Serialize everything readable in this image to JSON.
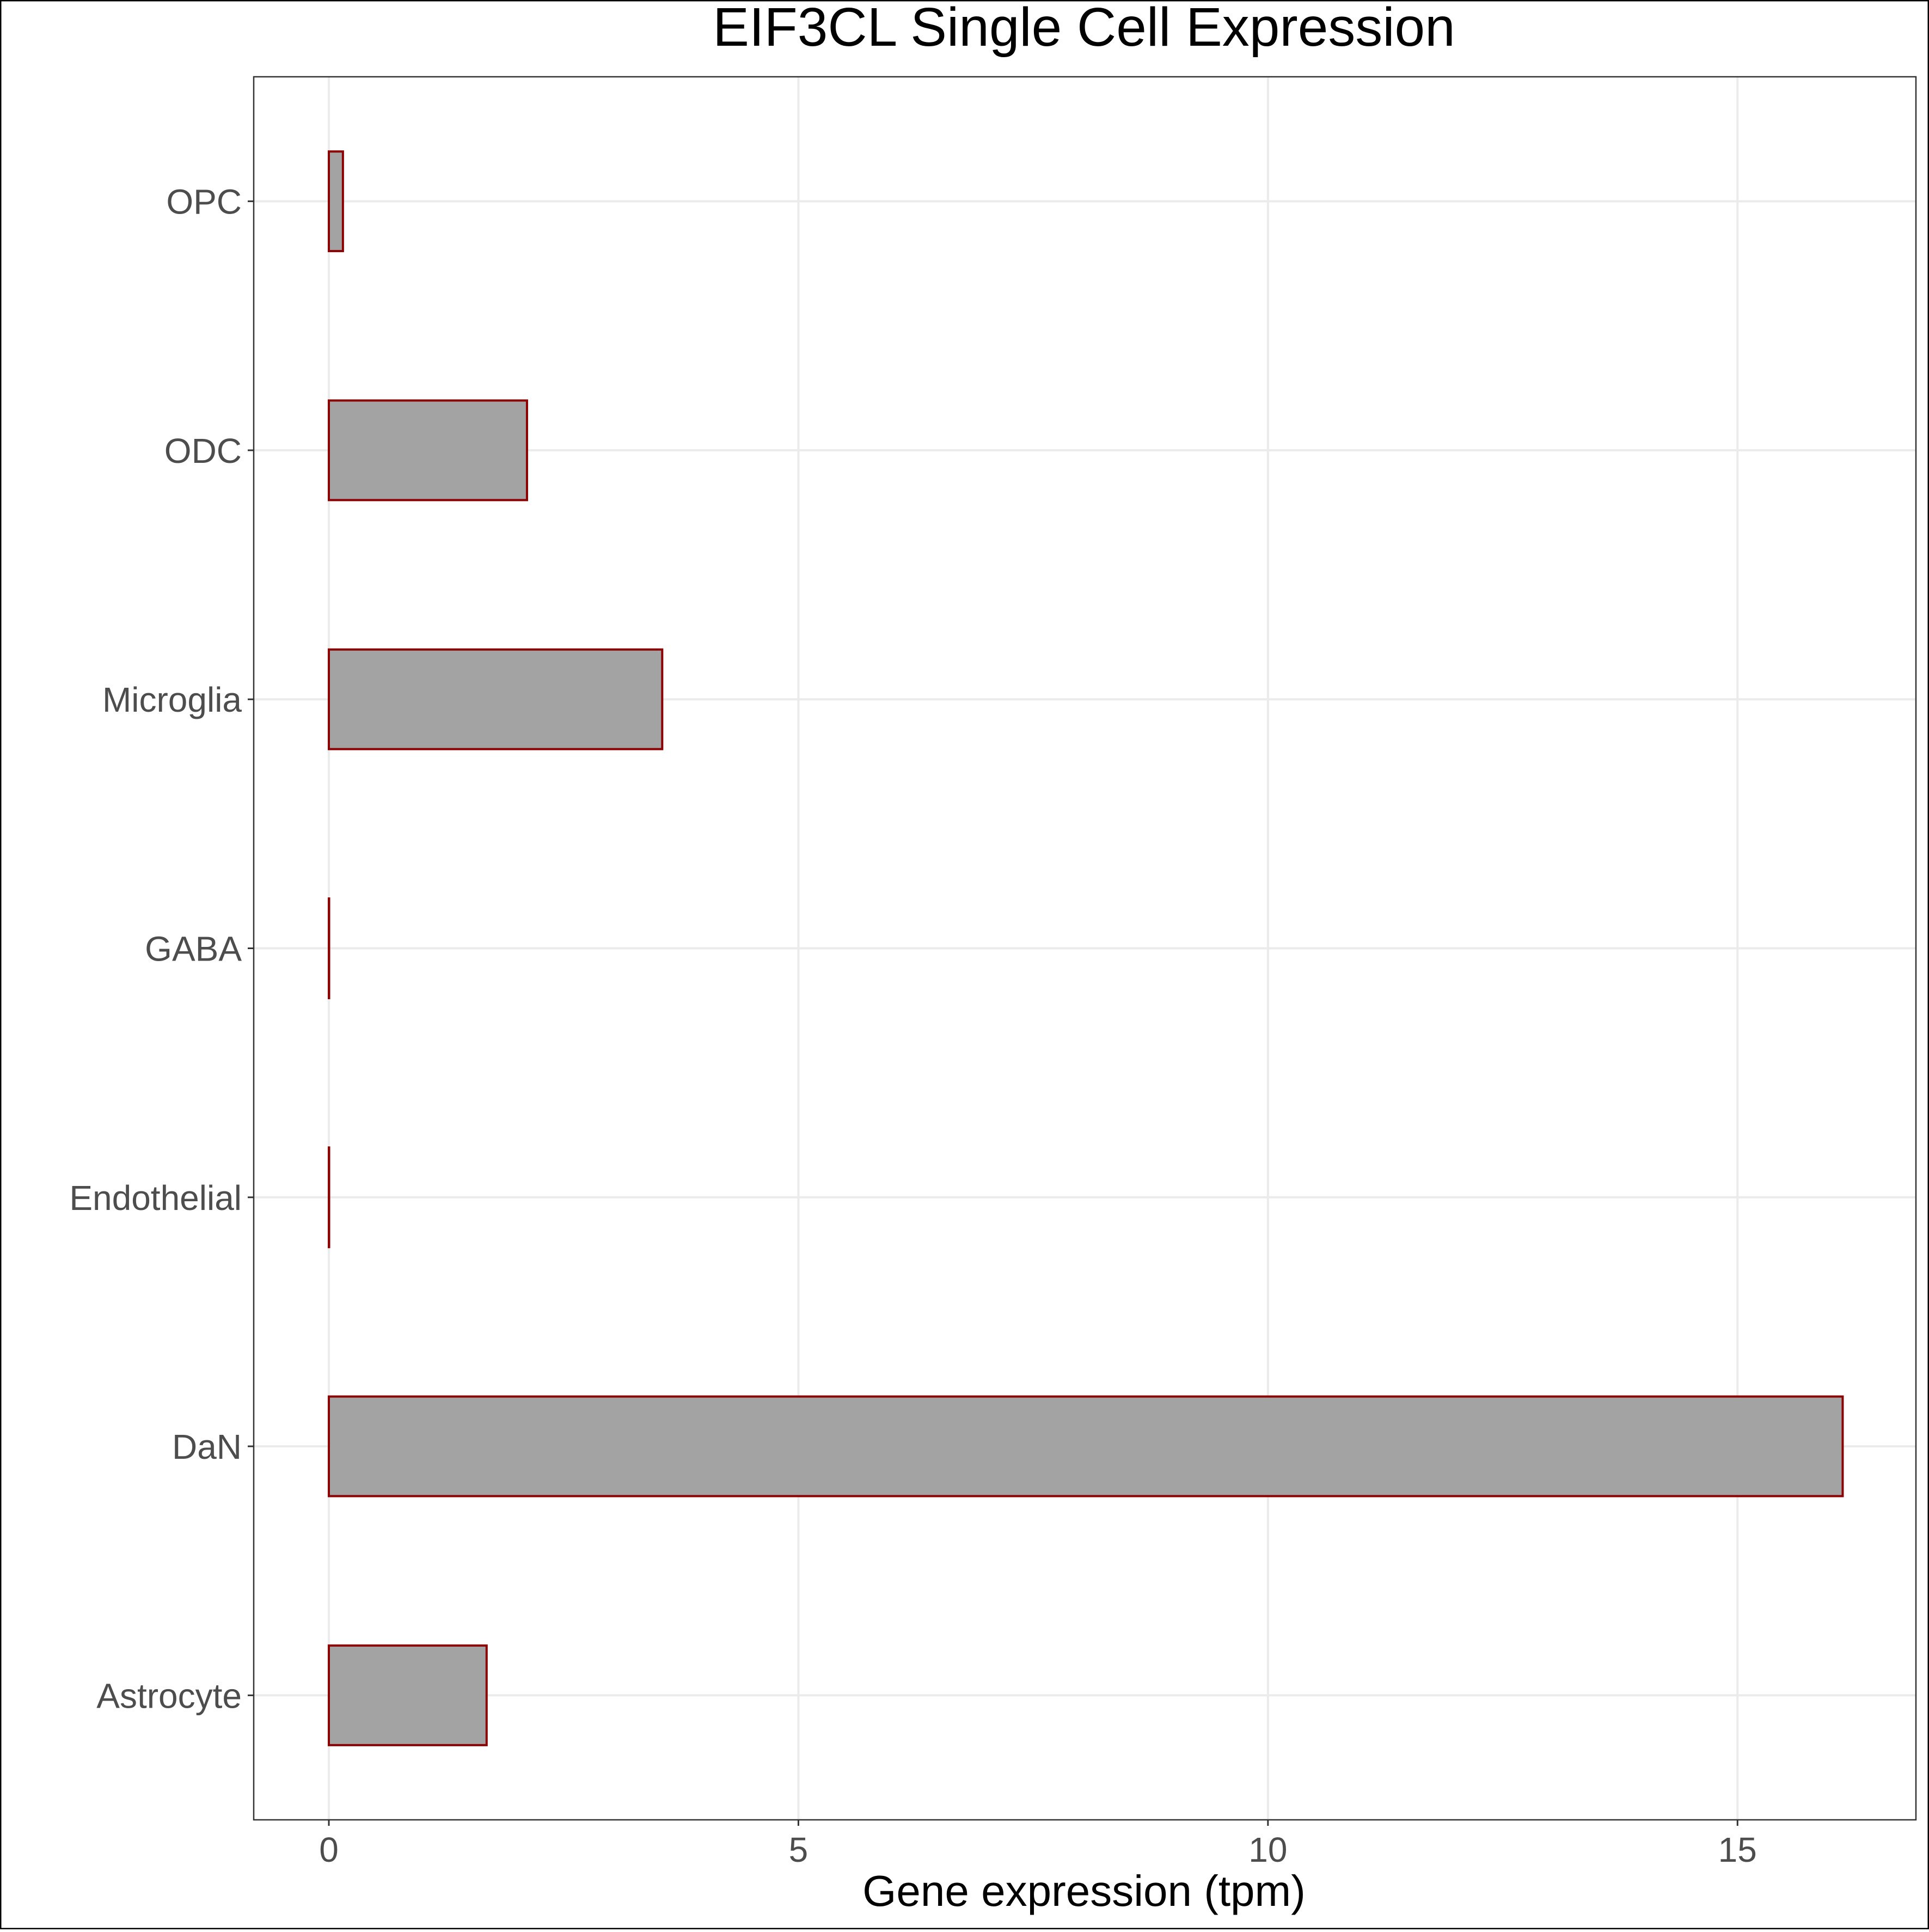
{
  "chart_data": {
    "type": "bar",
    "orientation": "horizontal",
    "title": "EIF3CL Single Cell Expression",
    "xlabel": "Gene expression (tpm)",
    "ylabel": "",
    "categories": [
      "Astrocyte",
      "DaN",
      "Endothelial",
      "GABA",
      "Microglia",
      "ODC",
      "OPC"
    ],
    "values": [
      1.68,
      16.12,
      0.0,
      0.0,
      3.55,
      2.11,
      0.15
    ],
    "xlim": [
      -0.8,
      16.9
    ],
    "xticks": [
      0,
      5,
      10,
      15
    ],
    "xtick_labels": [
      "0",
      "5",
      "10",
      "15"
    ],
    "grid": true,
    "legend": "none",
    "colors": {
      "bar_fill": "#a3a3a3",
      "bar_stroke": "#8b0000",
      "grid": "#ebebeb",
      "panel_border": "#333333",
      "axis_text": "#4d4d4d",
      "title_text": "#000000"
    }
  }
}
